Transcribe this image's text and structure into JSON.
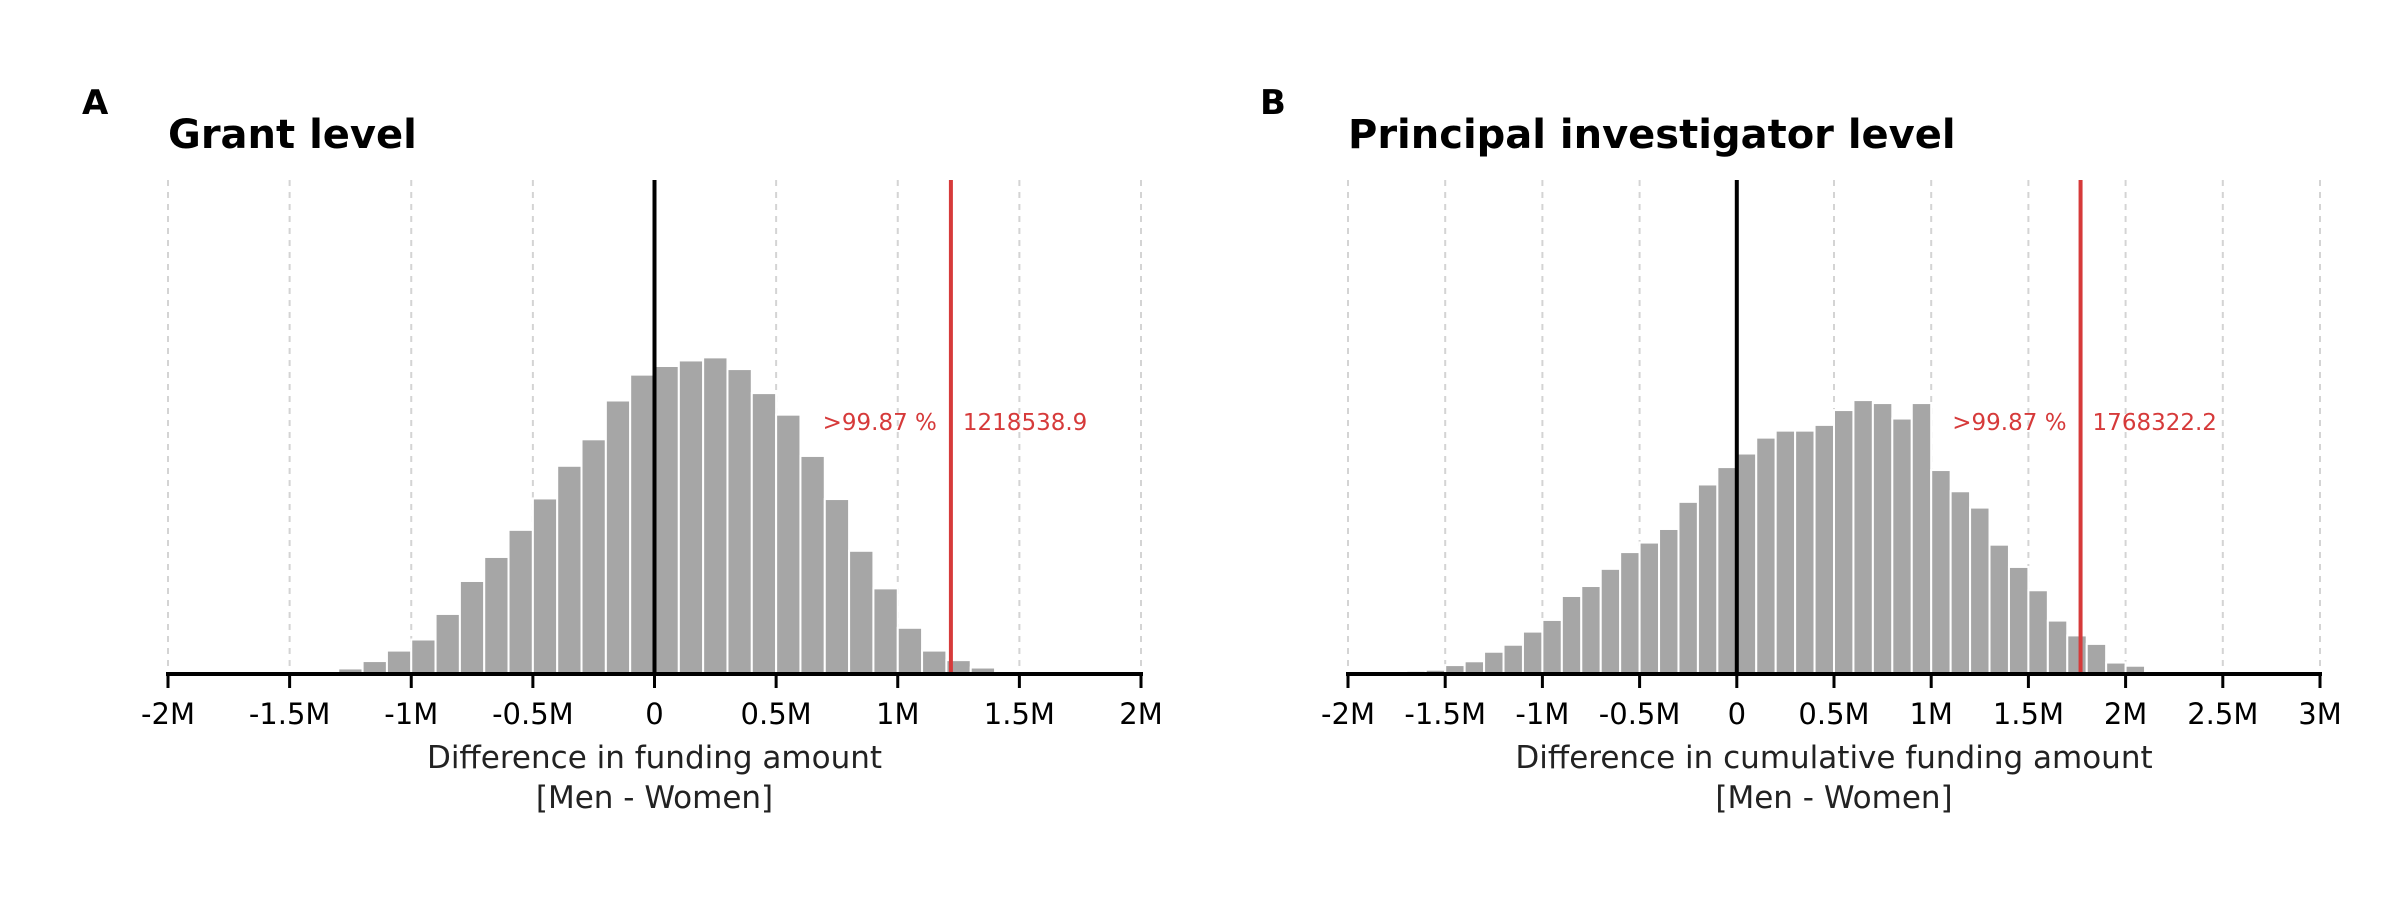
{
  "chart_data": [
    {
      "type": "bar",
      "panel_label": "A",
      "title": "Grant level",
      "xlabel": [
        "Difference in funding amount",
        "[Men - Women]"
      ],
      "xlim": [
        -2000000,
        2000000
      ],
      "xticks": [
        -2000000,
        -1500000,
        -1000000,
        -500000,
        0,
        500000,
        1000000,
        1500000,
        2000000
      ],
      "xtick_labels": [
        "-2M",
        "-1.5M",
        "-1M",
        "-0.5M",
        "0",
        "0.5M",
        "1M",
        "1.5M",
        "2M"
      ],
      "bin_start": -1500000,
      "bin_width": 100000,
      "values": [
        0.2,
        0.5,
        1.8,
        4.2,
        7.6,
        11.2,
        19.5,
        30.2,
        38.0,
        46.8,
        57.0,
        67.6,
        76.2,
        88.8,
        97.2,
        100.0,
        101.8,
        102.8,
        99.0,
        91.2,
        84.2,
        70.8,
        56.8,
        40.0,
        27.8,
        15.0,
        7.6,
        4.5,
        2.1
      ],
      "observed": 1218538.9,
      "observed_label": "1218538.9",
      "percentile_label": ">99.87 %",
      "color": "#a6a6a6",
      "observed_color": "#d63a3a"
    },
    {
      "type": "bar",
      "panel_label": "B",
      "title": "Principal investigator level",
      "xlabel": [
        "Difference in cumulative funding amount",
        "[Men - Women]"
      ],
      "xlim": [
        -2000000,
        3000000
      ],
      "xticks": [
        -2000000,
        -1500000,
        -1000000,
        -500000,
        0,
        500000,
        1000000,
        1500000,
        2000000,
        2500000,
        3000000
      ],
      "xtick_labels": [
        "-2M",
        "-1.5M",
        "-1M",
        "-0.5M",
        "0",
        "0.5M",
        "1M",
        "1.5M",
        "2M",
        "2.5M",
        "3M"
      ],
      "bin_start": -1800000,
      "bin_width": 100000,
      "values": [
        0.8,
        1.5,
        2.0,
        4.2,
        6.0,
        10.5,
        13.8,
        20.0,
        25.5,
        36.8,
        41.5,
        49.6,
        57.5,
        62.0,
        68.4,
        81.2,
        89.4,
        97.6,
        104.0,
        111.5,
        114.8,
        114.8,
        117.5,
        124.5,
        129.2,
        127.8,
        120.5,
        127.8,
        96.2,
        86.2,
        78.5,
        61.0,
        50.5,
        39.5,
        25.2,
        18.2,
        14.2,
        5.4,
        3.9,
        1.0
      ],
      "observed": 1768322.2,
      "observed_label": "1768322.2",
      "percentile_label": ">99.87 %",
      "color": "#a6a6a6",
      "observed_color": "#d63a3a"
    }
  ]
}
